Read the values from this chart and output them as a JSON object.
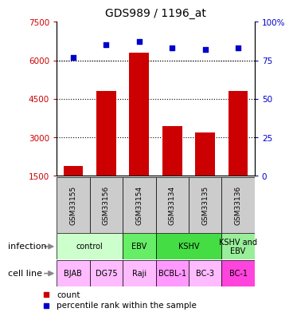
{
  "title": "GDS989 / 1196_at",
  "samples": [
    "GSM33155",
    "GSM33156",
    "GSM33154",
    "GSM33134",
    "GSM33135",
    "GSM33136"
  ],
  "counts": [
    1900,
    4800,
    6300,
    3450,
    3200,
    4800
  ],
  "percentiles": [
    77,
    85,
    87,
    83,
    82,
    83
  ],
  "ylim_left": [
    1500,
    7500
  ],
  "ylim_right": [
    0,
    100
  ],
  "yticks_left": [
    1500,
    3000,
    4500,
    6000,
    7500
  ],
  "yticks_right": [
    0,
    25,
    50,
    75,
    100
  ],
  "ytick_labels_right": [
    "0",
    "25",
    "50",
    "75",
    "100%"
  ],
  "bar_color": "#cc0000",
  "scatter_color": "#0000cc",
  "infection_groups": [
    {
      "label": "control",
      "span": [
        0,
        2
      ],
      "color": "#ccffcc"
    },
    {
      "label": "EBV",
      "span": [
        2,
        3
      ],
      "color": "#66ee66"
    },
    {
      "label": "KSHV",
      "span": [
        3,
        5
      ],
      "color": "#44dd44"
    },
    {
      "label": "KSHV and\nEBV",
      "span": [
        5,
        6
      ],
      "color": "#99ee99"
    }
  ],
  "cell_lines": [
    "BJAB",
    "DG75",
    "Raji",
    "BCBL-1",
    "BC-3",
    "BC-1"
  ],
  "cell_colors": [
    "#ffaaff",
    "#ffbbff",
    "#ffaaff",
    "#ff99ff",
    "#ffaaff",
    "#ff44ee"
  ],
  "sample_row_color": "#cccccc",
  "dotted_gridlines": [
    3000,
    4500,
    6000
  ],
  "background_color": "#ffffff",
  "plot_bg": "#ffffff"
}
